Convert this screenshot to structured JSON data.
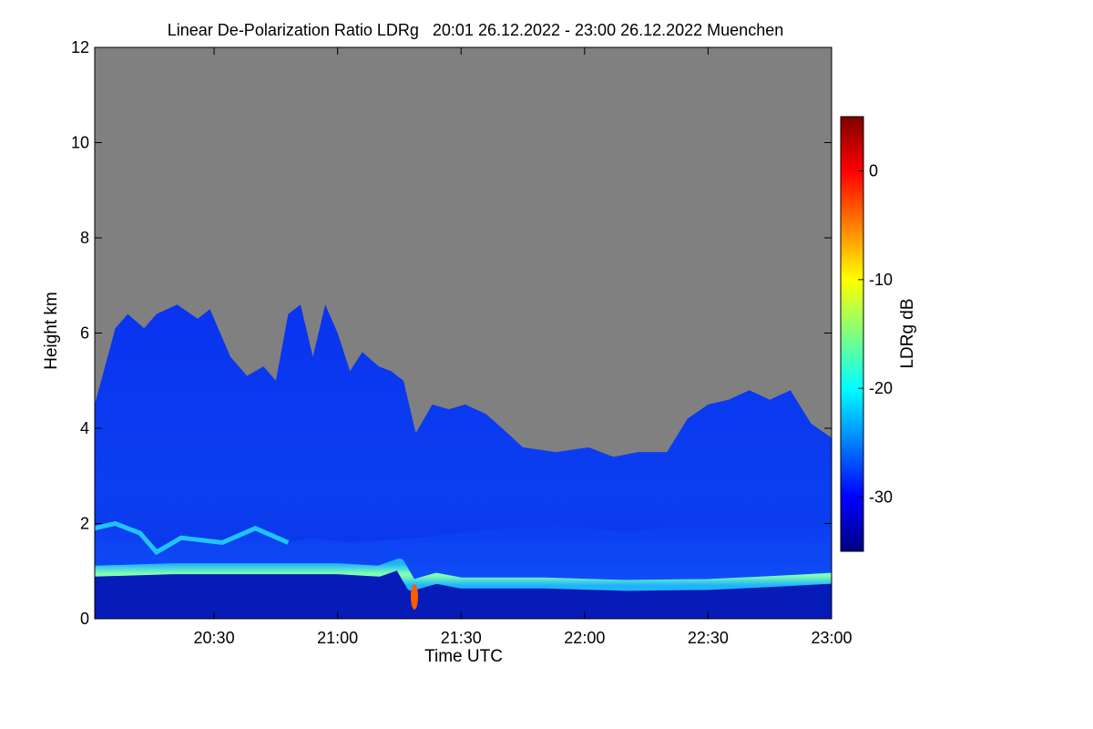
{
  "chart_data": {
    "type": "heatmap",
    "title": "Linear De-Polarization Ratio LDRg   20:01 26.12.2022 - 23:00 26.12.2022 Muenchen",
    "xlabel": "Time UTC",
    "ylabel": "Height km",
    "x_range_minutes_utc": [
      1201,
      1380
    ],
    "x_ticks": [
      {
        "minute": 1230,
        "label": "20:30"
      },
      {
        "minute": 1260,
        "label": "21:00"
      },
      {
        "minute": 1290,
        "label": "21:30"
      },
      {
        "minute": 1320,
        "label": "22:00"
      },
      {
        "minute": 1350,
        "label": "22:30"
      },
      {
        "minute": 1380,
        "label": "23:00"
      }
    ],
    "ylim": [
      0,
      12
    ],
    "y_ticks": [
      0,
      2,
      4,
      6,
      8,
      10,
      12
    ],
    "y_tick_labels": [
      "0",
      "2",
      "4",
      "6",
      "8",
      "10",
      "12"
    ],
    "background_color": "#808080",
    "colorbar": {
      "label": "LDRg dB",
      "range": [
        -35,
        5
      ],
      "ticks": [
        0,
        -10,
        -20,
        -30
      ],
      "tick_labels": [
        "0",
        "-10",
        "-20",
        "-30"
      ],
      "colormap": [
        "#00007f",
        "#0000ff",
        "#007fff",
        "#00ffff",
        "#7fff7f",
        "#ffff00",
        "#ff7f00",
        "#ff0000",
        "#7f0000"
      ]
    },
    "features": {
      "cloud_top_km": [
        {
          "minute": 1201,
          "km": 4.5
        },
        {
          "minute": 1206,
          "km": 6.1
        },
        {
          "minute": 1209,
          "km": 6.4
        },
        {
          "minute": 1213,
          "km": 6.1
        },
        {
          "minute": 1216,
          "km": 6.4
        },
        {
          "minute": 1221,
          "km": 6.6
        },
        {
          "minute": 1226,
          "km": 6.3
        },
        {
          "minute": 1229,
          "km": 6.5
        },
        {
          "minute": 1234,
          "km": 5.5
        },
        {
          "minute": 1238,
          "km": 5.1
        },
        {
          "minute": 1242,
          "km": 5.3
        },
        {
          "minute": 1245,
          "km": 5.0
        },
        {
          "minute": 1248,
          "km": 6.4
        },
        {
          "minute": 1251,
          "km": 6.6
        },
        {
          "minute": 1254,
          "km": 5.5
        },
        {
          "minute": 1257,
          "km": 6.6
        },
        {
          "minute": 1260,
          "km": 6.0
        },
        {
          "minute": 1263,
          "km": 5.2
        },
        {
          "minute": 1266,
          "km": 5.6
        },
        {
          "minute": 1270,
          "km": 5.3
        },
        {
          "minute": 1273,
          "km": 5.2
        },
        {
          "minute": 1276,
          "km": 5.0
        },
        {
          "minute": 1279,
          "km": 3.9
        },
        {
          "minute": 1283,
          "km": 4.5
        },
        {
          "minute": 1287,
          "km": 4.4
        },
        {
          "minute": 1291,
          "km": 4.5
        },
        {
          "minute": 1296,
          "km": 4.3
        },
        {
          "minute": 1300,
          "km": 4.0
        },
        {
          "minute": 1305,
          "km": 3.6
        },
        {
          "minute": 1313,
          "km": 3.5
        },
        {
          "minute": 1321,
          "km": 3.6
        },
        {
          "minute": 1327,
          "km": 3.4
        },
        {
          "minute": 1333,
          "km": 3.5
        },
        {
          "minute": 1340,
          "km": 3.5
        },
        {
          "minute": 1345,
          "km": 4.2
        },
        {
          "minute": 1350,
          "km": 4.5
        },
        {
          "minute": 1355,
          "km": 4.6
        },
        {
          "minute": 1360,
          "km": 4.8
        },
        {
          "minute": 1365,
          "km": 4.6
        },
        {
          "minute": 1370,
          "km": 4.8
        },
        {
          "minute": 1375,
          "km": 4.1
        },
        {
          "minute": 1380,
          "km": 3.8
        }
      ],
      "boundary_layer_km": [
        {
          "minute": 1201,
          "km": 1.0
        },
        {
          "minute": 1220,
          "km": 1.05
        },
        {
          "minute": 1240,
          "km": 1.05
        },
        {
          "minute": 1260,
          "km": 1.05
        },
        {
          "minute": 1270,
          "km": 1.0
        },
        {
          "minute": 1275,
          "km": 1.15
        },
        {
          "minute": 1278,
          "km": 0.7
        },
        {
          "minute": 1284,
          "km": 0.85
        },
        {
          "minute": 1290,
          "km": 0.75
        },
        {
          "minute": 1310,
          "km": 0.75
        },
        {
          "minute": 1330,
          "km": 0.7
        },
        {
          "minute": 1350,
          "km": 0.72
        },
        {
          "minute": 1365,
          "km": 0.78
        },
        {
          "minute": 1380,
          "km": 0.85
        }
      ],
      "low_layer_top_km": [
        {
          "minute": 1201,
          "km": 1.9
        },
        {
          "minute": 1206,
          "km": 2.0
        },
        {
          "minute": 1212,
          "km": 1.8
        },
        {
          "minute": 1216,
          "km": 1.4
        },
        {
          "minute": 1222,
          "km": 1.7
        },
        {
          "minute": 1232,
          "km": 1.6
        },
        {
          "minute": 1240,
          "km": 1.9
        },
        {
          "minute": 1248,
          "km": 1.6
        },
        {
          "minute": 1254,
          "km": 1.7
        },
        {
          "minute": 1262,
          "km": 1.6
        },
        {
          "minute": 1280,
          "km": 1.7
        },
        {
          "minute": 1300,
          "km": 1.9
        },
        {
          "minute": 1314,
          "km": 2.0
        },
        {
          "minute": 1330,
          "km": 1.8
        },
        {
          "minute": 1350,
          "km": 2.1
        },
        {
          "minute": 1380,
          "km": 2.0
        }
      ]
    }
  }
}
